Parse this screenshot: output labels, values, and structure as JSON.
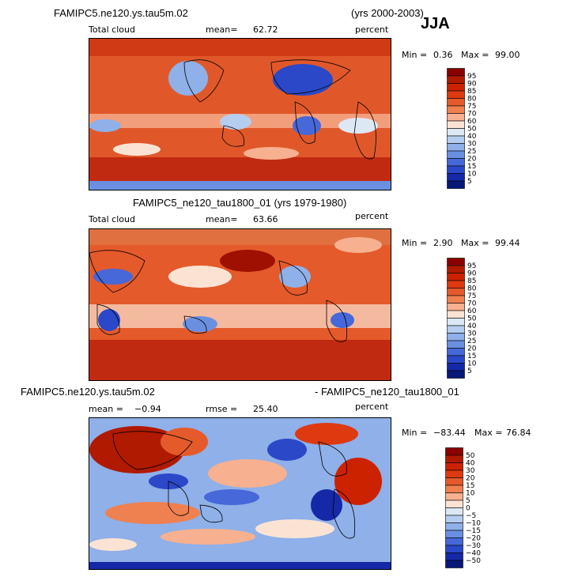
{
  "season": "JJA",
  "chart_data": [
    {
      "type": "heatmap",
      "case": "FAMIPC5.ne120.ys.tau5m.02",
      "years": "(yrs 2000-2003)",
      "variable": "Total cloud",
      "units": "percent",
      "mean_label": "mean=",
      "mean": "62.72",
      "min_label": "Min =",
      "min": "0.36",
      "max_label": "Max =",
      "max": "99.00",
      "levels": [
        "95",
        "90",
        "85",
        "80",
        "75",
        "70",
        "60",
        "50",
        "40",
        "30",
        "25",
        "20",
        "15",
        "10",
        "5"
      ],
      "colors": [
        "#8b0000",
        "#b01a00",
        "#cc2200",
        "#dd3a10",
        "#e55a2a",
        "#ef8050",
        "#f7b090",
        "#fbe3d3",
        "#dde8f5",
        "#b5cdee",
        "#8fb0e8",
        "#6a8fe0",
        "#4668d8",
        "#2a48c8",
        "#1428a8",
        "#081878"
      ]
    },
    {
      "type": "heatmap",
      "case": "FAMIPC5_ne120_tau1800_01 (yrs 1979-1980)",
      "variable": "Total cloud",
      "units": "percent",
      "mean_label": "mean=",
      "mean": "63.66",
      "min_label": "Min =",
      "min": "2.90",
      "max_label": "Max =",
      "max": "99.44",
      "levels": [
        "95",
        "90",
        "85",
        "80",
        "75",
        "70",
        "60",
        "50",
        "40",
        "30",
        "25",
        "20",
        "15",
        "10",
        "5"
      ],
      "colors": [
        "#8b0000",
        "#b01a00",
        "#cc2200",
        "#dd3a10",
        "#e55a2a",
        "#ef8050",
        "#f7b090",
        "#fbe3d3",
        "#dde8f5",
        "#b5cdee",
        "#8fb0e8",
        "#6a8fe0",
        "#4668d8",
        "#2a48c8",
        "#1428a8",
        "#081878"
      ]
    },
    {
      "type": "heatmap",
      "case_left": "FAMIPC5.ne120.ys.tau5m.02",
      "case_right": "- FAMIPC5_ne120_tau1800_01",
      "units": "percent",
      "mean_label": "mean =",
      "mean": "−0.94",
      "rmse_label": "rmse =",
      "rmse": "25.40",
      "min_label": "Min =",
      "min": "−83.44",
      "max_label": "Max =",
      "max": "76.84",
      "levels": [
        "50",
        "40",
        "30",
        "20",
        "15",
        "10",
        "5",
        "0",
        "−5",
        "−10",
        "−15",
        "−20",
        "−30",
        "−40",
        "−50"
      ],
      "colors": [
        "#8b0000",
        "#b01a00",
        "#cc2200",
        "#dd3a10",
        "#e55a2a",
        "#ef8050",
        "#f7b090",
        "#fbe3d3",
        "#dde8f5",
        "#b5cdee",
        "#8fb0e8",
        "#6a8fe0",
        "#4668d8",
        "#2a48c8",
        "#1428a8",
        "#081878"
      ]
    }
  ]
}
